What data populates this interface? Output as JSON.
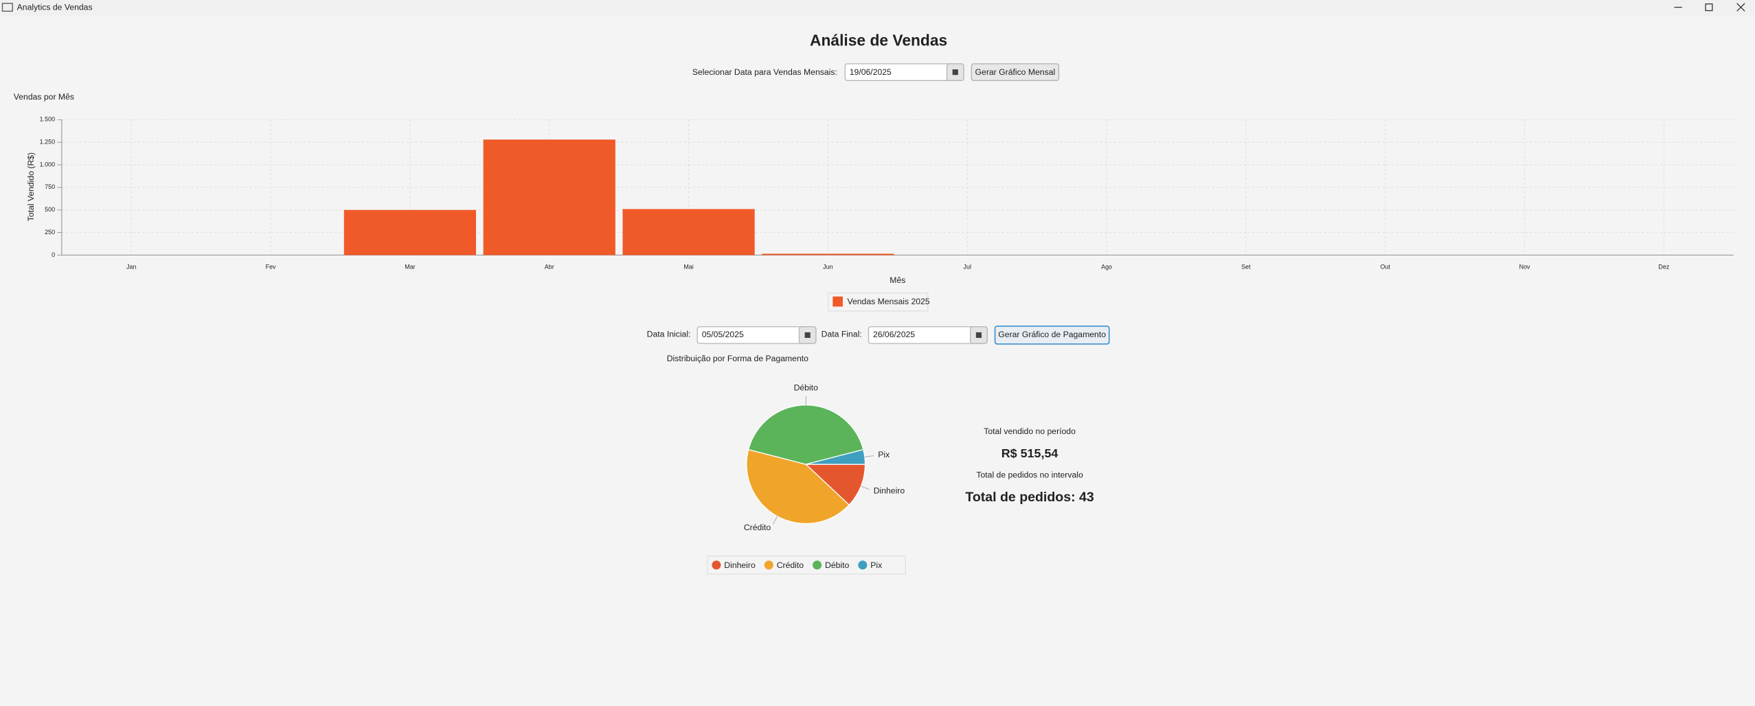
{
  "window": {
    "title": "Analytics de Vendas"
  },
  "header": {
    "title": "Análise de Vendas"
  },
  "monthly_controls": {
    "label": "Selecionar Data para Vendas Mensais:",
    "date": "19/06/2025",
    "button": "Gerar Gráfico Mensal"
  },
  "payment_controls": {
    "start_label": "Data Inicial:",
    "start_date": "05/05/2025",
    "end_label": "Data Final:",
    "end_date": "26/06/2025",
    "button": "Gerar Gráfico de Pagamento"
  },
  "summary": {
    "total_sold_label": "Total vendido no período",
    "total_sold": "R$ 515,54",
    "orders_label": "Total de pedidos no intervalo",
    "orders_total": "Total de pedidos: 43"
  },
  "chart_data": [
    {
      "type": "bar",
      "title": "Vendas por Mês",
      "x_label": "Mês",
      "y_label": "Total Vendido (R$)",
      "categories": [
        "Jan",
        "Fev",
        "Mar",
        "Abr",
        "Mai",
        "Jun",
        "Jul",
        "Ago",
        "Set",
        "Out",
        "Nov",
        "Dez"
      ],
      "series": [
        {
          "name": "Vendas Mensais 2025",
          "color": "#f05a28",
          "values": [
            0,
            0,
            500,
            1280,
            510,
            15,
            0,
            0,
            0,
            0,
            0,
            0
          ]
        }
      ],
      "ylim": [
        0,
        1500
      ],
      "yticks": [
        0,
        250,
        500,
        750,
        {
          "value": 1000,
          "label": "1.000"
        },
        {
          "value": 1250,
          "label": "1.250"
        },
        {
          "value": 1500,
          "label": "1.500"
        }
      ],
      "grid": true
    },
    {
      "type": "pie",
      "title": "Distribuição por Forma de Pagamento",
      "categories": [
        "Dinheiro",
        "Crédito",
        "Débito",
        "Pix"
      ],
      "values": [
        12,
        42,
        42,
        4
      ],
      "colors": [
        "#e4572e",
        "#f0a42a",
        "#5cb45a",
        "#3f9fc0"
      ],
      "clockwise": true
    }
  ]
}
